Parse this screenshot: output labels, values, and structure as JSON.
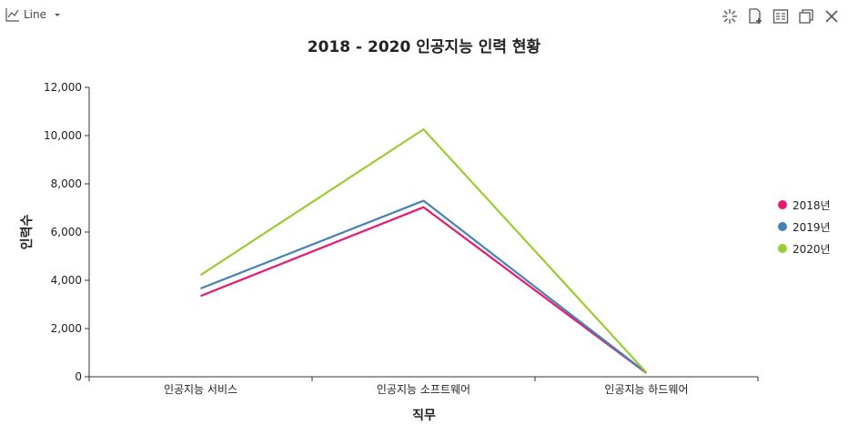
{
  "toolbar": {
    "chart_type_label": "Line",
    "left_icons": [
      "line-chart-icon",
      "dropdown-caret-icon"
    ],
    "right_icons": [
      "crosshair-icon",
      "export-file-icon",
      "data-view-icon",
      "copy-window-icon",
      "close-icon"
    ]
  },
  "chart_data": {
    "type": "line",
    "title": "2018 - 2020 인공지능 인력 현황",
    "xlabel": "직무",
    "ylabel": "인력수",
    "categories": [
      "인공지능 서비스",
      "인공지능 소프트웨어",
      "인공지능 하드웨어"
    ],
    "series": [
      {
        "name": "2018년",
        "color": "#e8196f",
        "values": [
          3350,
          7030,
          150
        ]
      },
      {
        "name": "2019년",
        "color": "#4682b4",
        "values": [
          3660,
          7300,
          160
        ]
      },
      {
        "name": "2020년",
        "color": "#9acd32",
        "values": [
          4220,
          10260,
          170
        ]
      }
    ],
    "ylim": [
      0,
      12000
    ],
    "yticks": [
      "0",
      "2,000",
      "4,000",
      "6,000",
      "8,000",
      "10,000",
      "12,000"
    ],
    "grid": false,
    "legend_position": "right"
  }
}
